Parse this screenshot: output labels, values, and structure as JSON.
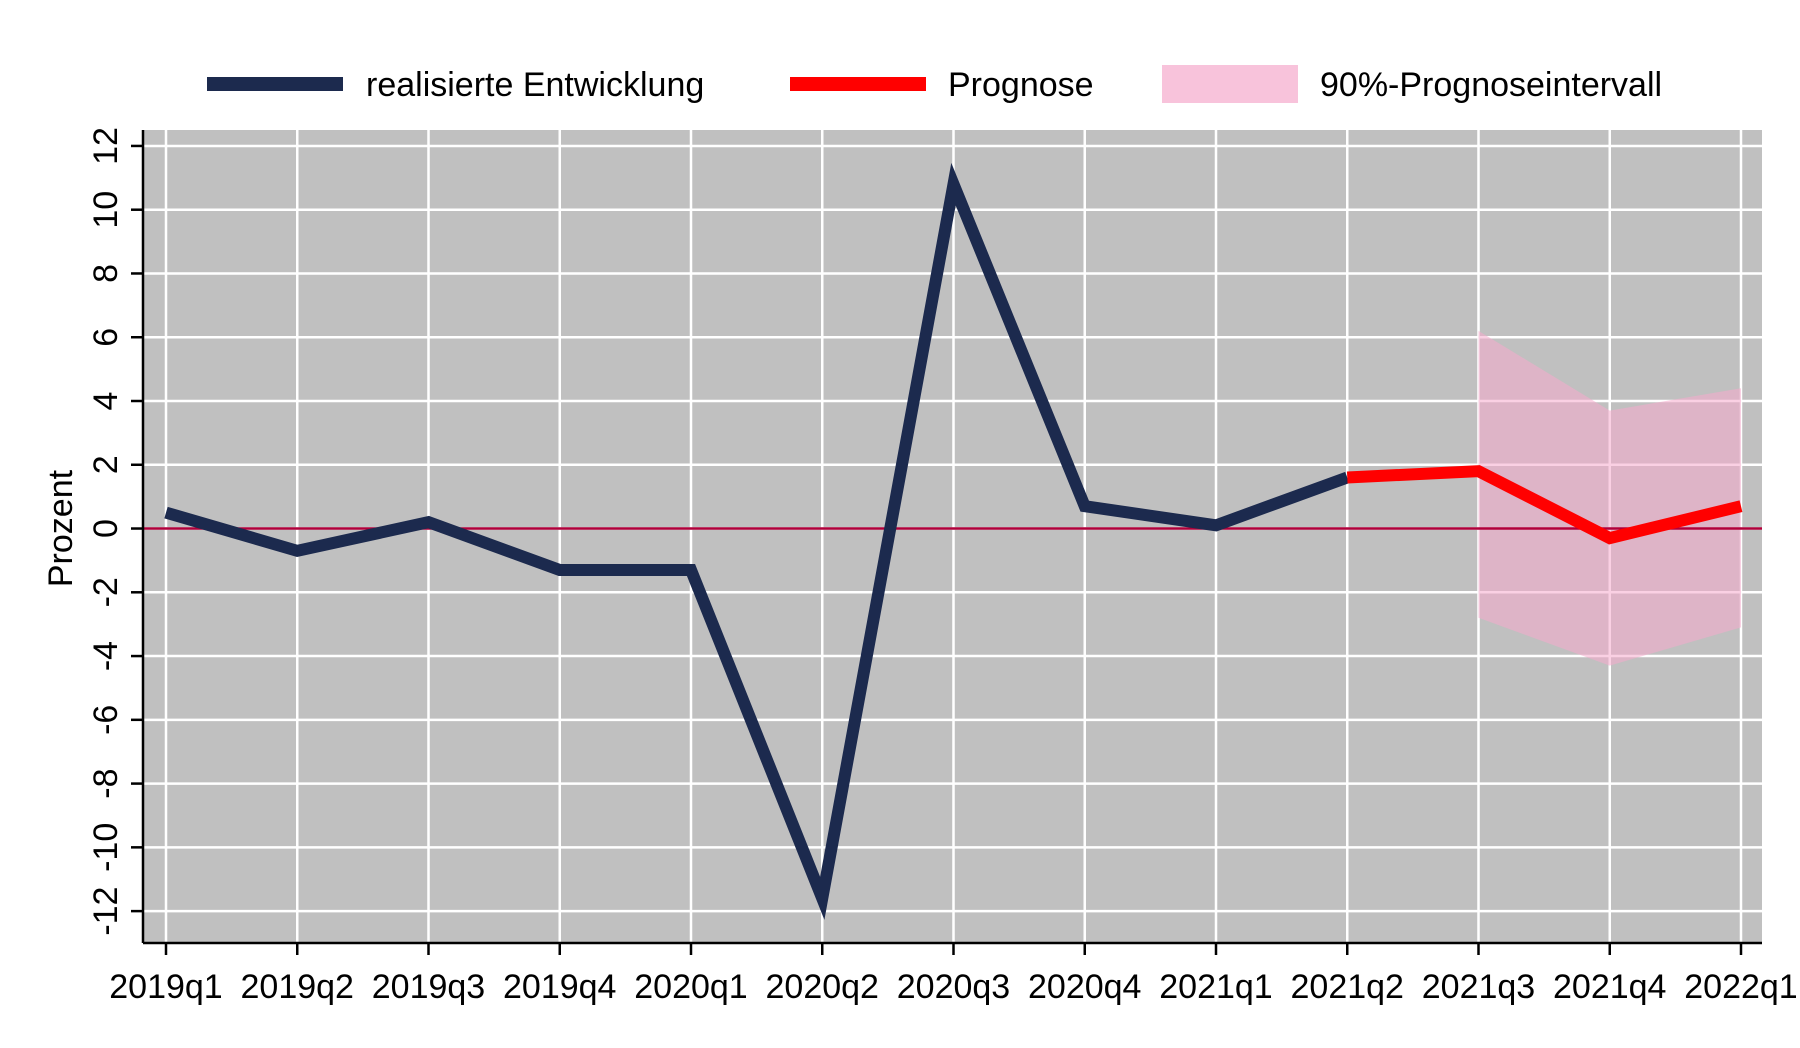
{
  "chart_data": {
    "type": "line",
    "title": "",
    "xlabel": "",
    "ylabel": "Prozent",
    "categories": [
      "2019q1",
      "2019q2",
      "2019q3",
      "2019q4",
      "2020q1",
      "2020q2",
      "2020q3",
      "2020q4",
      "2021q1",
      "2021q2",
      "2021q3",
      "2021q4",
      "2022q1"
    ],
    "ylim": [
      -13,
      12.5
    ],
    "yticks": [
      -12,
      -10,
      -8,
      -6,
      -4,
      -2,
      0,
      2,
      4,
      6,
      8,
      10,
      12
    ],
    "grid": true,
    "legend_position": "top",
    "zero_line": true,
    "series": [
      {
        "name": "realisierte Entwicklung",
        "color": "#1c2a4e",
        "x": [
          "2019q1",
          "2019q2",
          "2019q3",
          "2019q4",
          "2020q1",
          "2020q2",
          "2020q3",
          "2020q4",
          "2021q1",
          "2021q2"
        ],
        "values": [
          0.5,
          -0.7,
          0.2,
          -1.3,
          -1.3,
          -11.6,
          10.8,
          0.7,
          0.1,
          1.6
        ]
      },
      {
        "name": "Prognose",
        "color": "#ff0000",
        "x": [
          "2021q2",
          "2021q3",
          "2021q4",
          "2022q1"
        ],
        "values": [
          1.6,
          1.8,
          -0.3,
          0.7
        ]
      }
    ],
    "bands": [
      {
        "name": "90%-Prognoseintervall",
        "color": "#f5a9cc",
        "x": [
          "2021q3",
          "2021q4",
          "2022q1"
        ],
        "lower": [
          -2.8,
          -4.3,
          -3.1
        ],
        "upper": [
          6.2,
          3.7,
          4.4
        ]
      }
    ],
    "colors": {
      "plot_background": "#c0c0c0",
      "gridline": "#ffffff",
      "zero_line": "#b0003a"
    }
  }
}
